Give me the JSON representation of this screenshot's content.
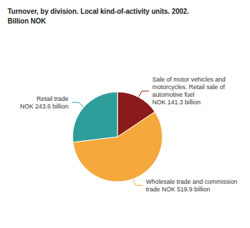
{
  "chart_data": {
    "type": "pie",
    "title": "Turnover, by division. Local kind-of-activity units. 2002.",
    "subtitle": "Billion NOK",
    "categories": [
      "Sale of motor vehicles and\nmotorcycles. Retail sale of\nautomotive fuel\nNOK 141.3 billion",
      "Wholesale trade and commission\ntrade NOK 519.9 billion",
      "Retail trade\nNOK 243.6 billion"
    ],
    "values": [
      141.3,
      519.9,
      243.6
    ],
    "colors": [
      "#8B1A1A",
      "#F5A83B",
      "#2E9E9A"
    ]
  }
}
